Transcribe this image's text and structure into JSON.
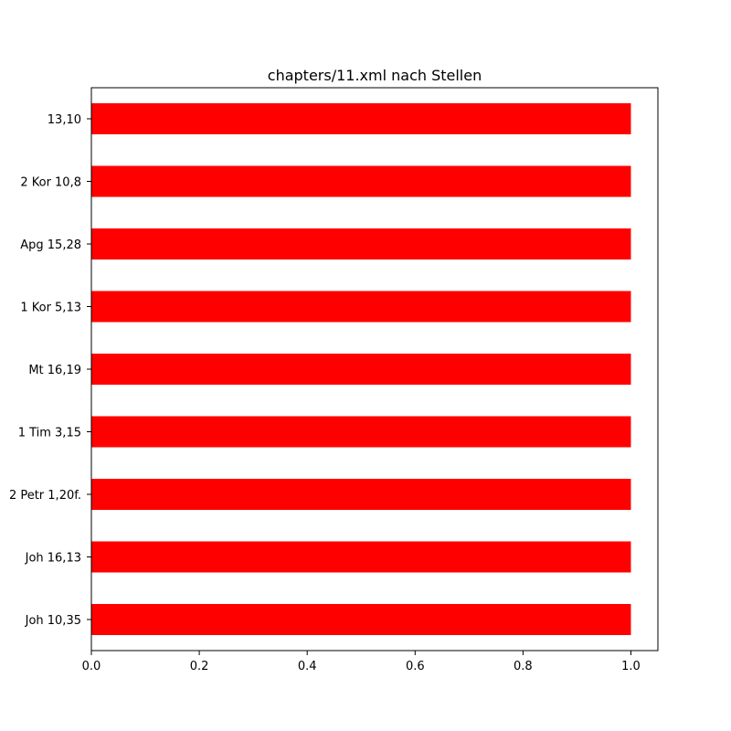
{
  "chart_data": {
    "type": "bar",
    "orientation": "horizontal",
    "title": "chapters/11.xml nach Stellen",
    "xlabel": "",
    "ylabel": "",
    "categories": [
      "Joh 10,35",
      "Joh 16,13",
      "2 Petr 1,20f.",
      "1 Tim 3,15",
      "Mt 16,19",
      "1 Kor 5,13",
      "Apg 15,28",
      "2 Kor 10,8",
      "13,10"
    ],
    "values": [
      1,
      1,
      1,
      1,
      1,
      1,
      1,
      1,
      1
    ],
    "xlim": [
      0,
      1.05
    ],
    "xticks": [
      "0.0",
      "0.2",
      "0.4",
      "0.6",
      "0.8",
      "1.0"
    ],
    "bar_color": "#ff0000",
    "grid": false,
    "legend": "none"
  }
}
